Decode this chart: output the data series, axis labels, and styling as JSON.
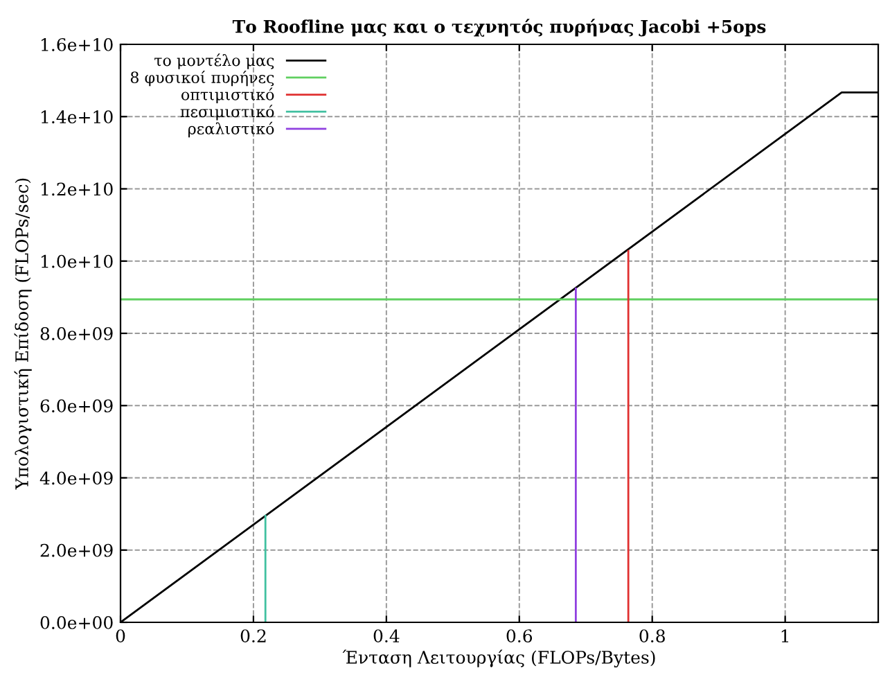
{
  "chart_data": {
    "type": "line",
    "title": "Το Roofline μας και ο τεχνητός πυρήνας Jacobi +5ops",
    "xlabel": "Ένταση Λειτουργίας (FLOPs/Bytes)",
    "ylabel": "Υπολογιστική Επίδοση (FLOPs/sec)",
    "series": [
      {
        "name": "το μοντέλο μας",
        "color": "#000000",
        "x": [
          0,
          1.085,
          1.14
        ],
        "values": [
          0,
          14670000000.0,
          14670000000.0
        ]
      },
      {
        "name": "8 φυσικοί πυρήνες",
        "color": "#5fcf5f",
        "x": [
          0,
          1.14
        ],
        "values": [
          8940000000.0,
          8940000000.0
        ]
      },
      {
        "name": "οπτιμιστικό",
        "color": "#e03030",
        "x": [
          0.764,
          0.764
        ],
        "values": [
          0,
          10280000000.0
        ]
      },
      {
        "name": "πεσιμιστικό",
        "color": "#40c0a0",
        "x": [
          0.218,
          0.218
        ],
        "values": [
          0,
          2950000000.0
        ]
      },
      {
        "name": "ρεαλιστικό",
        "color": "#9040e0",
        "x": [
          0.685,
          0.685
        ],
        "values": [
          0,
          9240000000.0
        ]
      }
    ],
    "xlim": [
      0,
      1.14
    ],
    "xticks": [
      0,
      0.2,
      0.4,
      0.6,
      0.8,
      1
    ],
    "ylim": [
      0,
      16000000000.0
    ],
    "yticks": [
      {
        "value": 0,
        "label": "0.0e+00"
      },
      {
        "value": 2000000000.0,
        "label": "2.0e+09"
      },
      {
        "value": 4000000000.0,
        "label": "4.0e+09"
      },
      {
        "value": 6000000000.0,
        "label": "6.0e+09"
      },
      {
        "value": 8000000000.0,
        "label": "8.0e+09"
      },
      {
        "value": 10000000000.0,
        "label": "1.0e+10"
      },
      {
        "value": 12000000000.0,
        "label": "1.2e+10"
      },
      {
        "value": 14000000000.0,
        "label": "1.4e+10"
      },
      {
        "value": 16000000000.0,
        "label": "1.6e+10"
      }
    ],
    "grid": true,
    "legend": "top left",
    "line_style": "solid",
    "marker": "none"
  }
}
